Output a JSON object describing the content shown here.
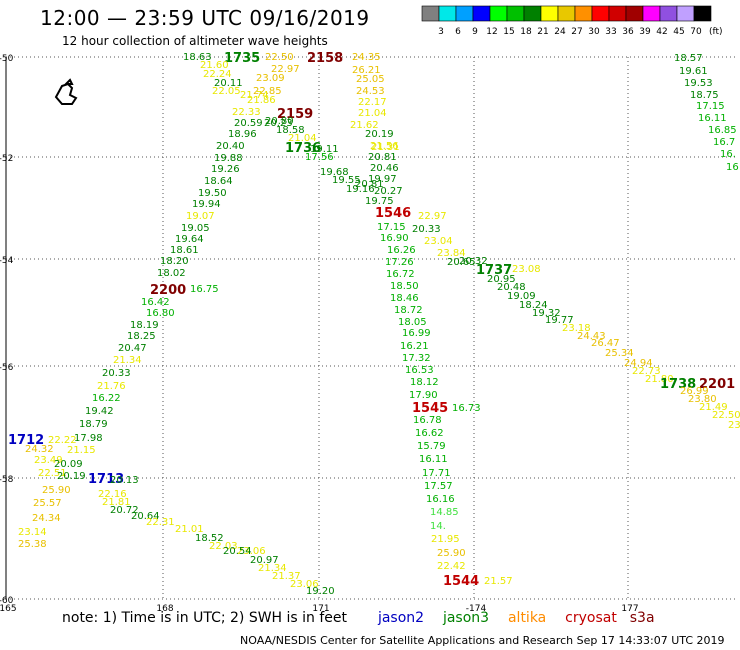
{
  "header": {
    "title": "12:00 — 23:59 UTC 09/16/2019",
    "subtitle": "12 hour collection of altimeter wave heights"
  },
  "colorbar": {
    "unit": "(ft)",
    "bins": [
      {
        "label": "",
        "color": "#808080"
      },
      {
        "label": "3",
        "color": "#00e8e8"
      },
      {
        "label": "6",
        "color": "#00a0ff"
      },
      {
        "label": "9",
        "color": "#0000ff"
      },
      {
        "label": "12",
        "color": "#00ff00"
      },
      {
        "label": "15",
        "color": "#00c000"
      },
      {
        "label": "18",
        "color": "#008000"
      },
      {
        "label": "21",
        "color": "#ffff00"
      },
      {
        "label": "24",
        "color": "#e8c800"
      },
      {
        "label": "27",
        "color": "#ff9000"
      },
      {
        "label": "30",
        "color": "#ff0000"
      },
      {
        "label": "33",
        "color": "#d00000"
      },
      {
        "label": "36",
        "color": "#a00000"
      },
      {
        "label": "39",
        "color": "#ff00ff"
      },
      {
        "label": "42",
        "color": "#9050e0"
      },
      {
        "label": "45",
        "color": "#c0a0ff"
      },
      {
        "label": "70",
        "color": "#000000"
      }
    ]
  },
  "map": {
    "lat_labels": [
      "-50",
      "-52",
      "-54",
      "-56",
      "-58",
      "-60"
    ],
    "lon_labels": [
      "165",
      "168",
      "171",
      "-174",
      "177"
    ],
    "track_colors": {
      "h15": "#00b000",
      "h18": "#008000",
      "h21": "#e8e800",
      "h24": "#e8c000",
      "h12": "#40e040"
    },
    "time_colors": {
      "jason2": "#0000c0",
      "jason3": "#008000",
      "altika": "#ff8c00",
      "cryosat": "#c00000",
      "s3a": "#800000"
    },
    "labels": [
      {
        "t": "18.63",
        "c": "h18"
      },
      {
        "t": "1735",
        "c": "jason3"
      },
      {
        "t": "22.50",
        "c": "h24"
      },
      {
        "t": "2158",
        "c": "s3a"
      },
      {
        "t": "24.35",
        "c": "h24"
      },
      {
        "t": "21.60",
        "c": "h21"
      },
      {
        "t": "22.97",
        "c": "h24"
      },
      {
        "t": "26.21",
        "c": "h24"
      },
      {
        "t": "22.24",
        "c": "h21"
      },
      {
        "t": "23.09",
        "c": "h24"
      },
      {
        "t": "25.05",
        "c": "h24"
      },
      {
        "t": "20.11",
        "c": "h18"
      },
      {
        "t": "22.85",
        "c": "h24"
      },
      {
        "t": "24.53",
        "c": "h24"
      },
      {
        "t": "22.05",
        "c": "h21"
      },
      {
        "t": "21.74",
        "c": "h21"
      },
      {
        "t": "22.17",
        "c": "h21"
      },
      {
        "t": "21.86",
        "c": "h21"
      },
      {
        "t": "2159",
        "c": "s3a"
      },
      {
        "t": "21.04",
        "c": "h21"
      },
      {
        "t": "22.33",
        "c": "h21"
      },
      {
        "t": "20.23",
        "c": "h18"
      },
      {
        "t": "21.62",
        "c": "h21"
      },
      {
        "t": "20.59",
        "c": "h18"
      },
      {
        "t": "20.80",
        "c": "h18"
      },
      {
        "t": "21.04",
        "c": "h21"
      },
      {
        "t": "21.56",
        "c": "h21"
      },
      {
        "t": "18.96",
        "c": "h18"
      },
      {
        "t": "18.58",
        "c": "h18"
      },
      {
        "t": "20.19",
        "c": "h18"
      },
      {
        "t": "20.40",
        "c": "h18"
      },
      {
        "t": "1736",
        "c": "jason3"
      },
      {
        "t": "21.31",
        "c": "h21"
      },
      {
        "t": "19.88",
        "c": "h18"
      },
      {
        "t": "19.11",
        "c": "h18"
      },
      {
        "t": "20.81",
        "c": "h18"
      },
      {
        "t": "19.26",
        "c": "h18"
      },
      {
        "t": "17.56",
        "c": "h15"
      },
      {
        "t": "20.46",
        "c": "h18"
      },
      {
        "t": "18.64",
        "c": "h18"
      },
      {
        "t": "19.68",
        "c": "h18"
      },
      {
        "t": "19.97",
        "c": "h18"
      },
      {
        "t": "19.50",
        "c": "h18"
      },
      {
        "t": "19.55",
        "c": "h18"
      },
      {
        "t": "20.81",
        "c": "h18"
      },
      {
        "t": "19.94",
        "c": "h18"
      },
      {
        "t": "19.16",
        "c": "h18"
      },
      {
        "t": "20.27",
        "c": "h18"
      },
      {
        "t": "19.07",
        "c": "h21"
      },
      {
        "t": "19.75",
        "c": "h18"
      },
      {
        "t": "19.05",
        "c": "h18"
      },
      {
        "t": "1546",
        "c": "cryosat"
      },
      {
        "t": "22.97",
        "c": "h21"
      },
      {
        "t": "19.64",
        "c": "h18"
      },
      {
        "t": "17.15",
        "c": "h15"
      },
      {
        "t": "20.33",
        "c": "h18"
      },
      {
        "t": "18.61",
        "c": "h18"
      },
      {
        "t": "16.90",
        "c": "h15"
      },
      {
        "t": "23.04",
        "c": "h21"
      },
      {
        "t": "18.20",
        "c": "h18"
      },
      {
        "t": "16.26",
        "c": "h15"
      },
      {
        "t": "23.84",
        "c": "h21"
      },
      {
        "t": "18.02",
        "c": "h18"
      },
      {
        "t": "17.26",
        "c": "h15"
      },
      {
        "t": "20.65",
        "c": "h18"
      },
      {
        "t": "2200",
        "c": "s3a"
      },
      {
        "t": "16.75",
        "c": "h15"
      },
      {
        "t": "16.72",
        "c": "h15"
      },
      {
        "t": "20.32",
        "c": "h18"
      },
      {
        "t": "16.42",
        "c": "h15"
      },
      {
        "t": "18.50",
        "c": "h15"
      },
      {
        "t": "1737",
        "c": "jason3"
      },
      {
        "t": "23.08",
        "c": "h21"
      },
      {
        "t": "16.80",
        "c": "h15"
      },
      {
        "t": "18.46",
        "c": "h15"
      },
      {
        "t": "20.95",
        "c": "h18"
      },
      {
        "t": "18.19",
        "c": "h18"
      },
      {
        "t": "18.72",
        "c": "h15"
      },
      {
        "t": "20.48",
        "c": "h18"
      },
      {
        "t": "18.25",
        "c": "h18"
      },
      {
        "t": "18.05",
        "c": "h15"
      },
      {
        "t": "19.09",
        "c": "h18"
      },
      {
        "t": "20.47",
        "c": "h18"
      },
      {
        "t": "16.99",
        "c": "h15"
      },
      {
        "t": "18.24",
        "c": "h18"
      },
      {
        "t": "21.34",
        "c": "h21"
      },
      {
        "t": "16.21",
        "c": "h15"
      },
      {
        "t": "19.32",
        "c": "h18"
      },
      {
        "t": "20.33",
        "c": "h18"
      },
      {
        "t": "17.32",
        "c": "h15"
      },
      {
        "t": "19.77",
        "c": "h18"
      },
      {
        "t": "21.76",
        "c": "h21"
      },
      {
        "t": "16.53",
        "c": "h15"
      },
      {
        "t": "23.18",
        "c": "h21"
      },
      {
        "t": "16.22",
        "c": "h15"
      },
      {
        "t": "18.12",
        "c": "h15"
      },
      {
        "t": "24.43",
        "c": "h24"
      },
      {
        "t": "19.42",
        "c": "h18"
      },
      {
        "t": "17.90",
        "c": "h15"
      },
      {
        "t": "26.47",
        "c": "h24"
      },
      {
        "t": "18.79",
        "c": "h18"
      },
      {
        "t": "1545",
        "c": "cryosat"
      },
      {
        "t": "16.73",
        "c": "h15"
      },
      {
        "t": "25.34",
        "c": "h24"
      },
      {
        "t": "1712",
        "c": "jason2"
      },
      {
        "t": "22.22",
        "c": "h21"
      },
      {
        "t": "17.98",
        "c": "h18"
      },
      {
        "t": "16.78",
        "c": "h15"
      },
      {
        "t": "24.94",
        "c": "h24"
      },
      {
        "t": "24.32",
        "c": "h24"
      },
      {
        "t": "21.15",
        "c": "h21"
      },
      {
        "t": "16.62",
        "c": "h15"
      },
      {
        "t": "22.73",
        "c": "h21"
      },
      {
        "t": "23.49",
        "c": "h21"
      },
      {
        "t": "20.09",
        "c": "h18"
      },
      {
        "t": "15.79",
        "c": "h15"
      },
      {
        "t": "21.80",
        "c": "h21"
      },
      {
        "t": "22.51",
        "c": "h21"
      },
      {
        "t": "20.19",
        "c": "h18"
      },
      {
        "t": "16.11",
        "c": "h15"
      },
      {
        "t": "1738",
        "c": "jason3"
      },
      {
        "t": "2201",
        "c": "s3a"
      },
      {
        "t": "1713",
        "c": "jason2"
      },
      {
        "t": "20.13",
        "c": "h18"
      },
      {
        "t": "17.71",
        "c": "h15"
      },
      {
        "t": "26.99",
        "c": "h24"
      },
      {
        "t": "25.90",
        "c": "h24"
      },
      {
        "t": "22.16",
        "c": "h21"
      },
      {
        "t": "17.57",
        "c": "h15"
      },
      {
        "t": "23.80",
        "c": "h24"
      },
      {
        "t": "25.57",
        "c": "h24"
      },
      {
        "t": "21.81",
        "c": "h21"
      },
      {
        "t": "16.16",
        "c": "h15"
      },
      {
        "t": "21.49",
        "c": "h21"
      },
      {
        "t": "24.34",
        "c": "h24"
      },
      {
        "t": "20.72",
        "c": "h18"
      },
      {
        "t": "14.85",
        "c": "h12"
      },
      {
        "t": "22.50",
        "c": "h21"
      },
      {
        "t": "23.14",
        "c": "h21"
      },
      {
        "t": "20.64",
        "c": "h18"
      },
      {
        "t": "14.",
        "c": "h12"
      },
      {
        "t": "23.76",
        "c": "h21"
      },
      {
        "t": "25.38",
        "c": "h24"
      },
      {
        "t": "22.31",
        "c": "h21"
      },
      {
        "t": "21.95",
        "c": "h21"
      },
      {
        "t": "21.01",
        "c": "h21"
      },
      {
        "t": "25.90",
        "c": "h24"
      },
      {
        "t": "18.52",
        "c": "h18"
      },
      {
        "t": "22.42",
        "c": "h21"
      },
      {
        "t": "22.03",
        "c": "h21"
      },
      {
        "t": "23.06",
        "c": "h21"
      },
      {
        "t": "20.54",
        "c": "h18"
      },
      {
        "t": "1544",
        "c": "cryosat"
      },
      {
        "t": "21.57",
        "c": "h21"
      },
      {
        "t": "20.97",
        "c": "h18"
      },
      {
        "t": "21.34",
        "c": "h21"
      },
      {
        "t": "21.37",
        "c": "h21"
      },
      {
        "t": "23.06",
        "c": "h21"
      },
      {
        "t": "19.20",
        "c": "h18"
      },
      {
        "t": "18.57",
        "c": "h18"
      },
      {
        "t": "19.61",
        "c": "h18"
      },
      {
        "t": "19.53",
        "c": "h18"
      },
      {
        "t": "18.75",
        "c": "h18"
      },
      {
        "t": "17.15",
        "c": "h15"
      },
      {
        "t": "16.11",
        "c": "h15"
      },
      {
        "t": "16.85",
        "c": "h15"
      },
      {
        "t": "16.7",
        "c": "h15"
      },
      {
        "t": "16.",
        "c": "h15"
      },
      {
        "t": "16",
        "c": "h15"
      }
    ]
  },
  "note": {
    "text": "note: 1) Time is in UTC; 2) SWH is in feet",
    "jason2": "jason2",
    "jason3": "jason3",
    "altika": "altika",
    "cryosat": "cryosat",
    "s3a": "s3a"
  },
  "credits": "NOAA/NESDIS Center for Satellite Applications and Research   Sep 17 14:33:07 UTC 2019"
}
